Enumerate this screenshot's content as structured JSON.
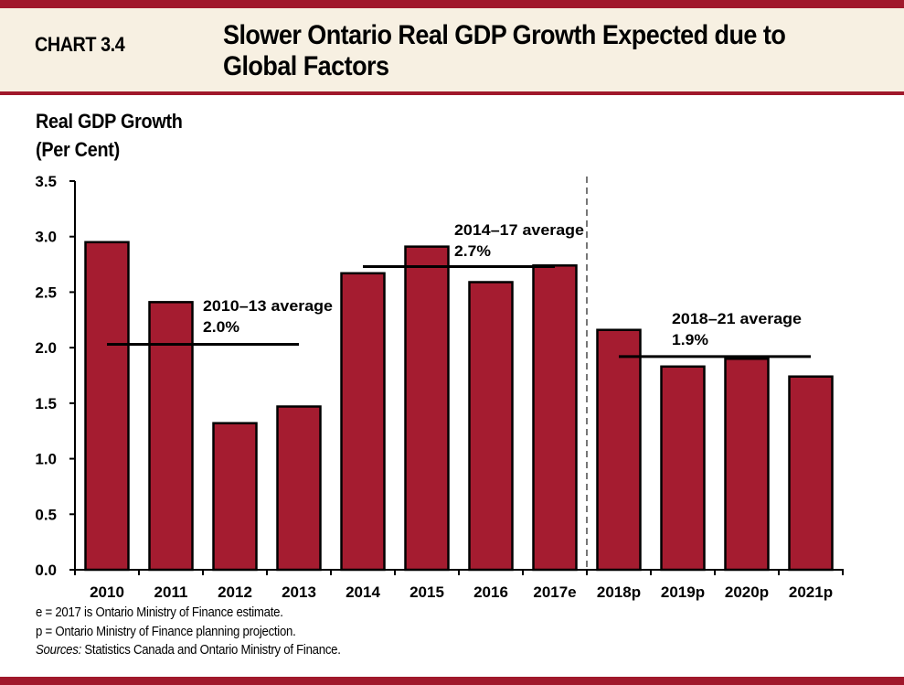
{
  "header": {
    "chart_number": "CHART 3.4",
    "title": "Slower Ontario Real GDP Growth Expected due to Global Factors"
  },
  "colors": {
    "brand_red": "#a0182b",
    "bar_fill": "#a51c30",
    "header_bg": "#f7f0e2"
  },
  "footnotes": {
    "line1": "e = 2017 is Ontario Ministry of Finance estimate.",
    "line2": "p = Ontario Ministry of Finance planning projection.",
    "sources_label": "Sources:",
    "sources_text": " Statistics  Canada and Ontario Ministry of Finance."
  },
  "chart_data": {
    "type": "bar",
    "title": "Slower Ontario Real GDP Growth Expected due to Global Factors",
    "xlabel": "",
    "ylabel": "Real GDP Growth (Per Cent)",
    "ylabel_lines": [
      "Real GDP Growth",
      "(Per Cent)"
    ],
    "categories": [
      "2010",
      "2011",
      "2012",
      "2013",
      "2014",
      "2015",
      "2016",
      "2017e",
      "2018p",
      "2019p",
      "2020p",
      "2021p"
    ],
    "values": [
      2.95,
      2.41,
      1.32,
      1.47,
      2.67,
      2.91,
      2.59,
      2.74,
      2.16,
      1.83,
      1.9,
      1.74
    ],
    "ylim": [
      0,
      3.5
    ],
    "yticks": [
      0.0,
      0.5,
      1.0,
      1.5,
      2.0,
      2.5,
      3.0,
      3.5
    ],
    "ytick_labels": [
      "0.0",
      "0.5",
      "1.0",
      "1.5",
      "2.0",
      "2.5",
      "3.0",
      "3.5"
    ],
    "grid": false,
    "legend": "none",
    "divider_after_category": "2017e",
    "averages": [
      {
        "label": "2010–13 average",
        "value_label": "2.0%",
        "value": 2.03,
        "from": "2010",
        "to": "2013"
      },
      {
        "label": "2014–17 average",
        "value_label": "2.7%",
        "value": 2.73,
        "from": "2014",
        "to": "2017e"
      },
      {
        "label": "2018–21 average",
        "value_label": "1.9%",
        "value": 1.92,
        "from": "2018p",
        "to": "2021p"
      }
    ]
  }
}
